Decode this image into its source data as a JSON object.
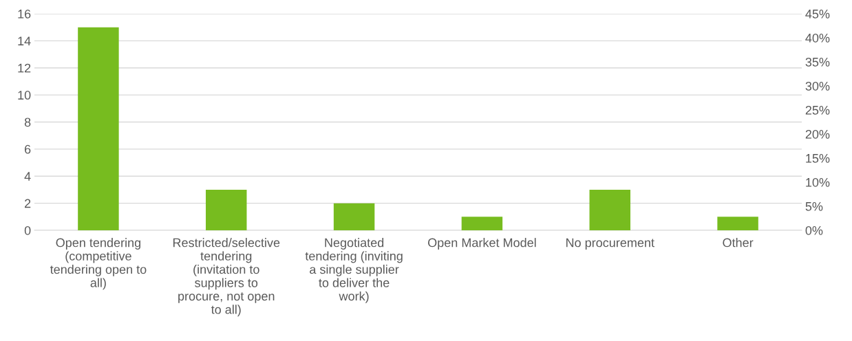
{
  "chart_data": {
    "type": "bar",
    "categories": [
      "Open tendering (competitive tendering open to all)",
      "Restricted/selective tendering (invitation to suppliers to procure, not open to all)",
      "Negotiated tendering (inviting a single supplier to deliver the work)",
      "Open Market Model",
      "No procurement",
      "Other"
    ],
    "values": [
      15,
      3,
      2,
      1,
      3,
      1
    ],
    "color": "#77bc1f",
    "ylim": [
      0,
      16
    ],
    "yticks": [
      0,
      2,
      4,
      6,
      8,
      10,
      12,
      14,
      16
    ],
    "y2lim": [
      0,
      45
    ],
    "y2ticks": [
      {
        "value": 0,
        "label": "0%"
      },
      {
        "value": 5,
        "label": "5%"
      },
      {
        "value": 10,
        "label": "10%"
      },
      {
        "value": 15,
        "label": "15%"
      },
      {
        "value": 20,
        "label": "20%"
      },
      {
        "value": 25,
        "label": "25%"
      },
      {
        "value": 30,
        "label": "30%"
      },
      {
        "value": 35,
        "label": "35%"
      },
      {
        "value": 40,
        "label": "40%"
      },
      {
        "value": 45,
        "label": "45%"
      }
    ],
    "grid": "y",
    "legend": false
  }
}
